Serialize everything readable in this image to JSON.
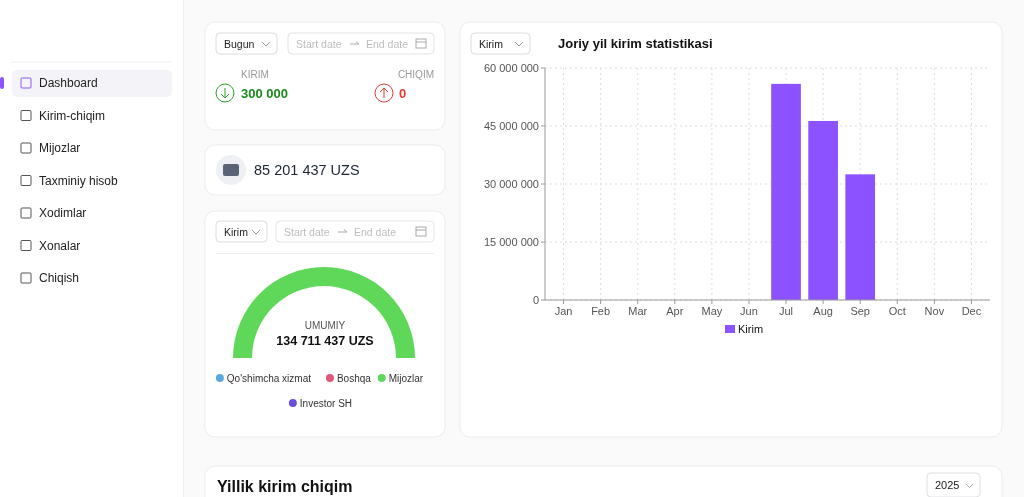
{
  "chart_data": [
    {
      "type": "other",
      "annotations": [
        "Dashboard",
        "Kirim-chiqim",
        "Mijozlar",
        "Taxminiy hisob",
        "Xodimlar",
        "Xonalar",
        "Chiqish"
      ]
    },
    {
      "type": "other",
      "annotations": [
        "Bugun",
        "Start date",
        "End date",
        "KIRIM",
        "300 000",
        "CHIQIM",
        "0"
      ]
    },
    {
      "type": "other",
      "annotations": [
        "85 201 437 UZS"
      ]
    },
    {
      "type": "pie",
      "categories": [
        "Qo'shimcha xizmat",
        "Boshqa",
        "Mijozlar",
        "Investor SH"
      ],
      "values": [
        0,
        0,
        100,
        0
      ],
      "colors": [
        "#5aa9dc",
        "#e0557a",
        "#5fd85a",
        "#6b4fd8"
      ],
      "legend": "bottom",
      "annotations": [
        "Kirim",
        "Start date",
        "End date",
        "UMUMIY",
        "134 711 437 UZS"
      ]
    },
    {
      "type": "bar",
      "title": "Joriy yil kirim statistikasi",
      "categories": [
        "Jan",
        "Feb",
        "Mar",
        "Apr",
        "May",
        "Jun",
        "Jul",
        "Aug",
        "Sep",
        "Oct",
        "Nov",
        "Dec"
      ],
      "series": [
        {
          "name": "Kirim",
          "color": "#8c52ff",
          "values": [
            0,
            0,
            0,
            0,
            0,
            0,
            55900000,
            46300000,
            32500000,
            0,
            0,
            0
          ]
        }
      ],
      "ylim": [
        0,
        60000000
      ],
      "yticks": [
        {
          "value": 0,
          "label": "0"
        },
        {
          "value": 15000000,
          "label": "15 000 000"
        },
        {
          "value": 30000000,
          "label": "30 000 000"
        },
        {
          "value": 45000000,
          "label": "45 000 000"
        },
        {
          "value": 60000000,
          "label": "60 000 000"
        }
      ],
      "grid": true,
      "legend": "bottom",
      "annotations": [
        "Kirim"
      ]
    },
    {
      "type": "other",
      "title": "Yillik kirim chiqim",
      "annotations": [
        "2025"
      ]
    }
  ]
}
